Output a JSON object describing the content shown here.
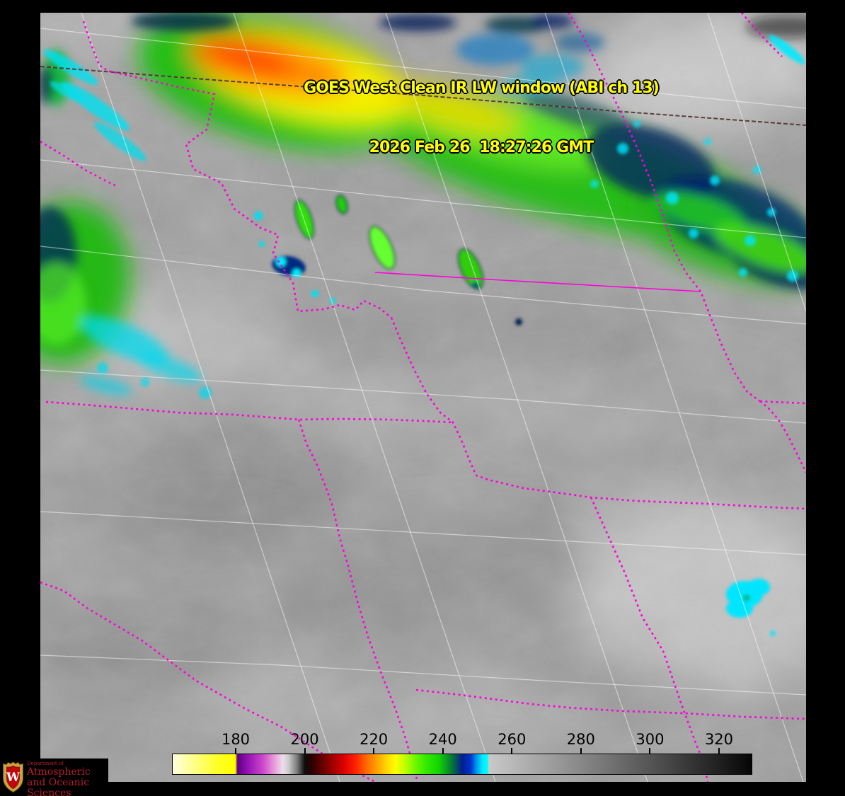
{
  "header": {
    "title_line1": "GOES West Clean IR LW window (ABI ch 13)",
    "title_line2": "2026 Feb 26  18:27:26 GMT",
    "title_color": "#ffff00"
  },
  "colorbar": {
    "tick_labels": [
      "180",
      "200",
      "220",
      "240",
      "260",
      "280",
      "300",
      "320"
    ],
    "gradient_stops": [
      [
        0,
        "#ffffe0"
      ],
      [
        3,
        "#ffff99"
      ],
      [
        8,
        "#ffff22"
      ],
      [
        10.8,
        "#ffff00"
      ],
      [
        11.2,
        "#5c0082"
      ],
      [
        13,
        "#9612b4"
      ],
      [
        15.5,
        "#cc44cc"
      ],
      [
        17.5,
        "#e79ad9"
      ],
      [
        19,
        "#eedcec"
      ],
      [
        20,
        "#cccccc"
      ],
      [
        21.5,
        "#7a7a7a"
      ],
      [
        22.8,
        "#0d0d0d"
      ],
      [
        24,
        "#2b0000"
      ],
      [
        27,
        "#8c0000"
      ],
      [
        29.5,
        "#d90000"
      ],
      [
        31.5,
        "#ff1e00"
      ],
      [
        33.5,
        "#ff6a00"
      ],
      [
        35.5,
        "#ffa800"
      ],
      [
        37,
        "#ffd800"
      ],
      [
        38.5,
        "#fdff00"
      ],
      [
        40,
        "#c4ff00"
      ],
      [
        42,
        "#6cf700"
      ],
      [
        44,
        "#2fe800"
      ],
      [
        46,
        "#12d400"
      ],
      [
        48.5,
        "#066a40"
      ],
      [
        50,
        "#001f8f"
      ],
      [
        51.5,
        "#0033cc"
      ],
      [
        52.5,
        "#0099eb"
      ],
      [
        53.5,
        "#00e8ff"
      ],
      [
        54.4,
        "#00ffff"
      ],
      [
        54.6,
        "#c9c9c9"
      ],
      [
        70,
        "#8a8a8a"
      ],
      [
        85,
        "#4a4a4a"
      ],
      [
        100,
        "#060606"
      ]
    ]
  },
  "overlay_colors": {
    "state_border": "#ff00dd",
    "graticule": "#ffffff",
    "international_border": "#4a2828"
  },
  "logo": {
    "dept_prefix": "Department of",
    "dept_line1": "Atmospheric",
    "dept_line2": "and Oceanic Sciences",
    "crest_letter": "W",
    "text_color": "#b81c31"
  }
}
